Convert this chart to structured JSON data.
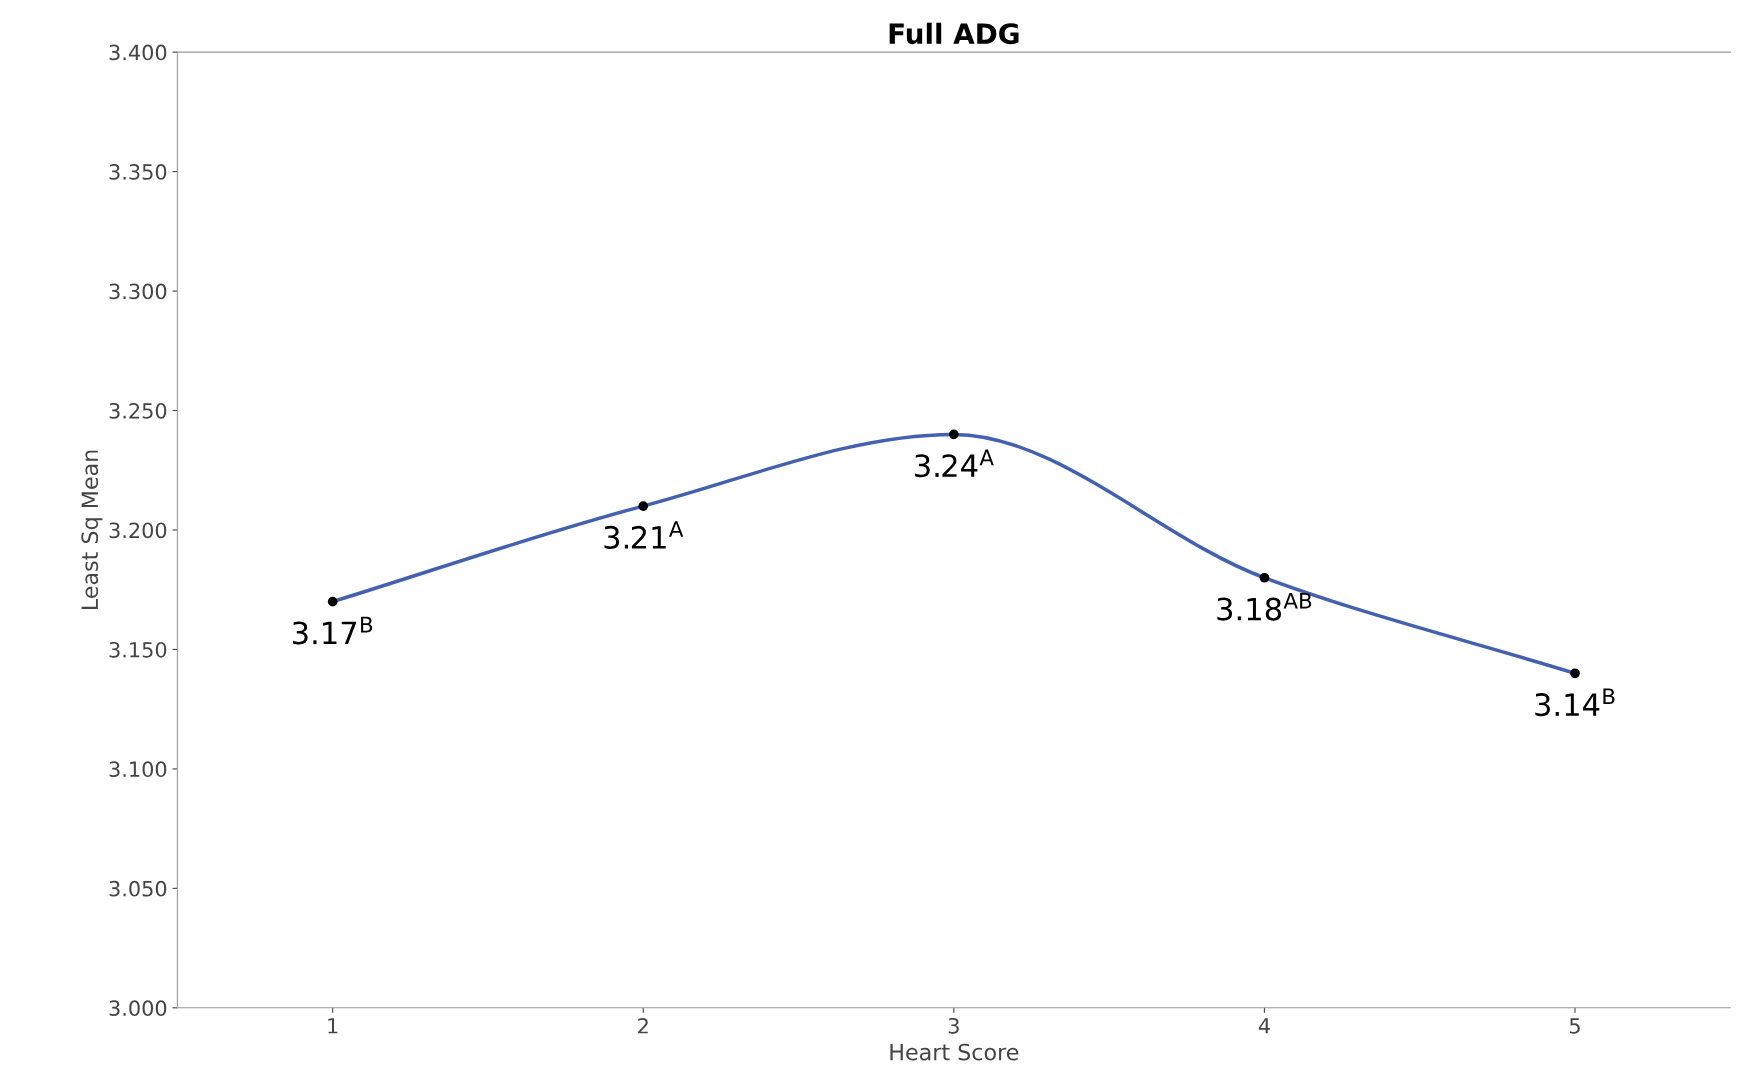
{
  "chart_data": {
    "type": "line",
    "title": "Full ADG",
    "xlabel": "Heart Score",
    "ylabel": "Least Sq Mean",
    "categories": [
      "1",
      "2",
      "3",
      "4",
      "5"
    ],
    "series": [
      {
        "color": "#4361b0",
        "values": [
          3.17,
          3.21,
          3.24,
          3.18,
          3.14
        ],
        "value_labels": [
          "3.17$^{B}$",
          "3.21$^{A}$",
          "3.24$^{A}$",
          "3.18$^{AB}$",
          "3.14$^{B}$"
        ]
      }
    ],
    "ylim": [
      3.0,
      3.4
    ],
    "yticks": [
      {
        "value": 3.0,
        "label": "3.000"
      },
      {
        "value": 3.05,
        "label": "3.050"
      },
      {
        "value": 3.1,
        "label": "3.100"
      },
      {
        "value": 3.15,
        "label": "3.150"
      },
      {
        "value": 3.2,
        "label": "3.200"
      },
      {
        "value": 3.25,
        "label": "3.250"
      },
      {
        "value": 3.3,
        "label": "3.300"
      },
      {
        "value": 3.35,
        "label": "3.350"
      },
      {
        "value": 3.4,
        "label": "3.400"
      }
    ],
    "grid": false,
    "legend": false,
    "marker": "circle",
    "line_style": "solid"
  }
}
